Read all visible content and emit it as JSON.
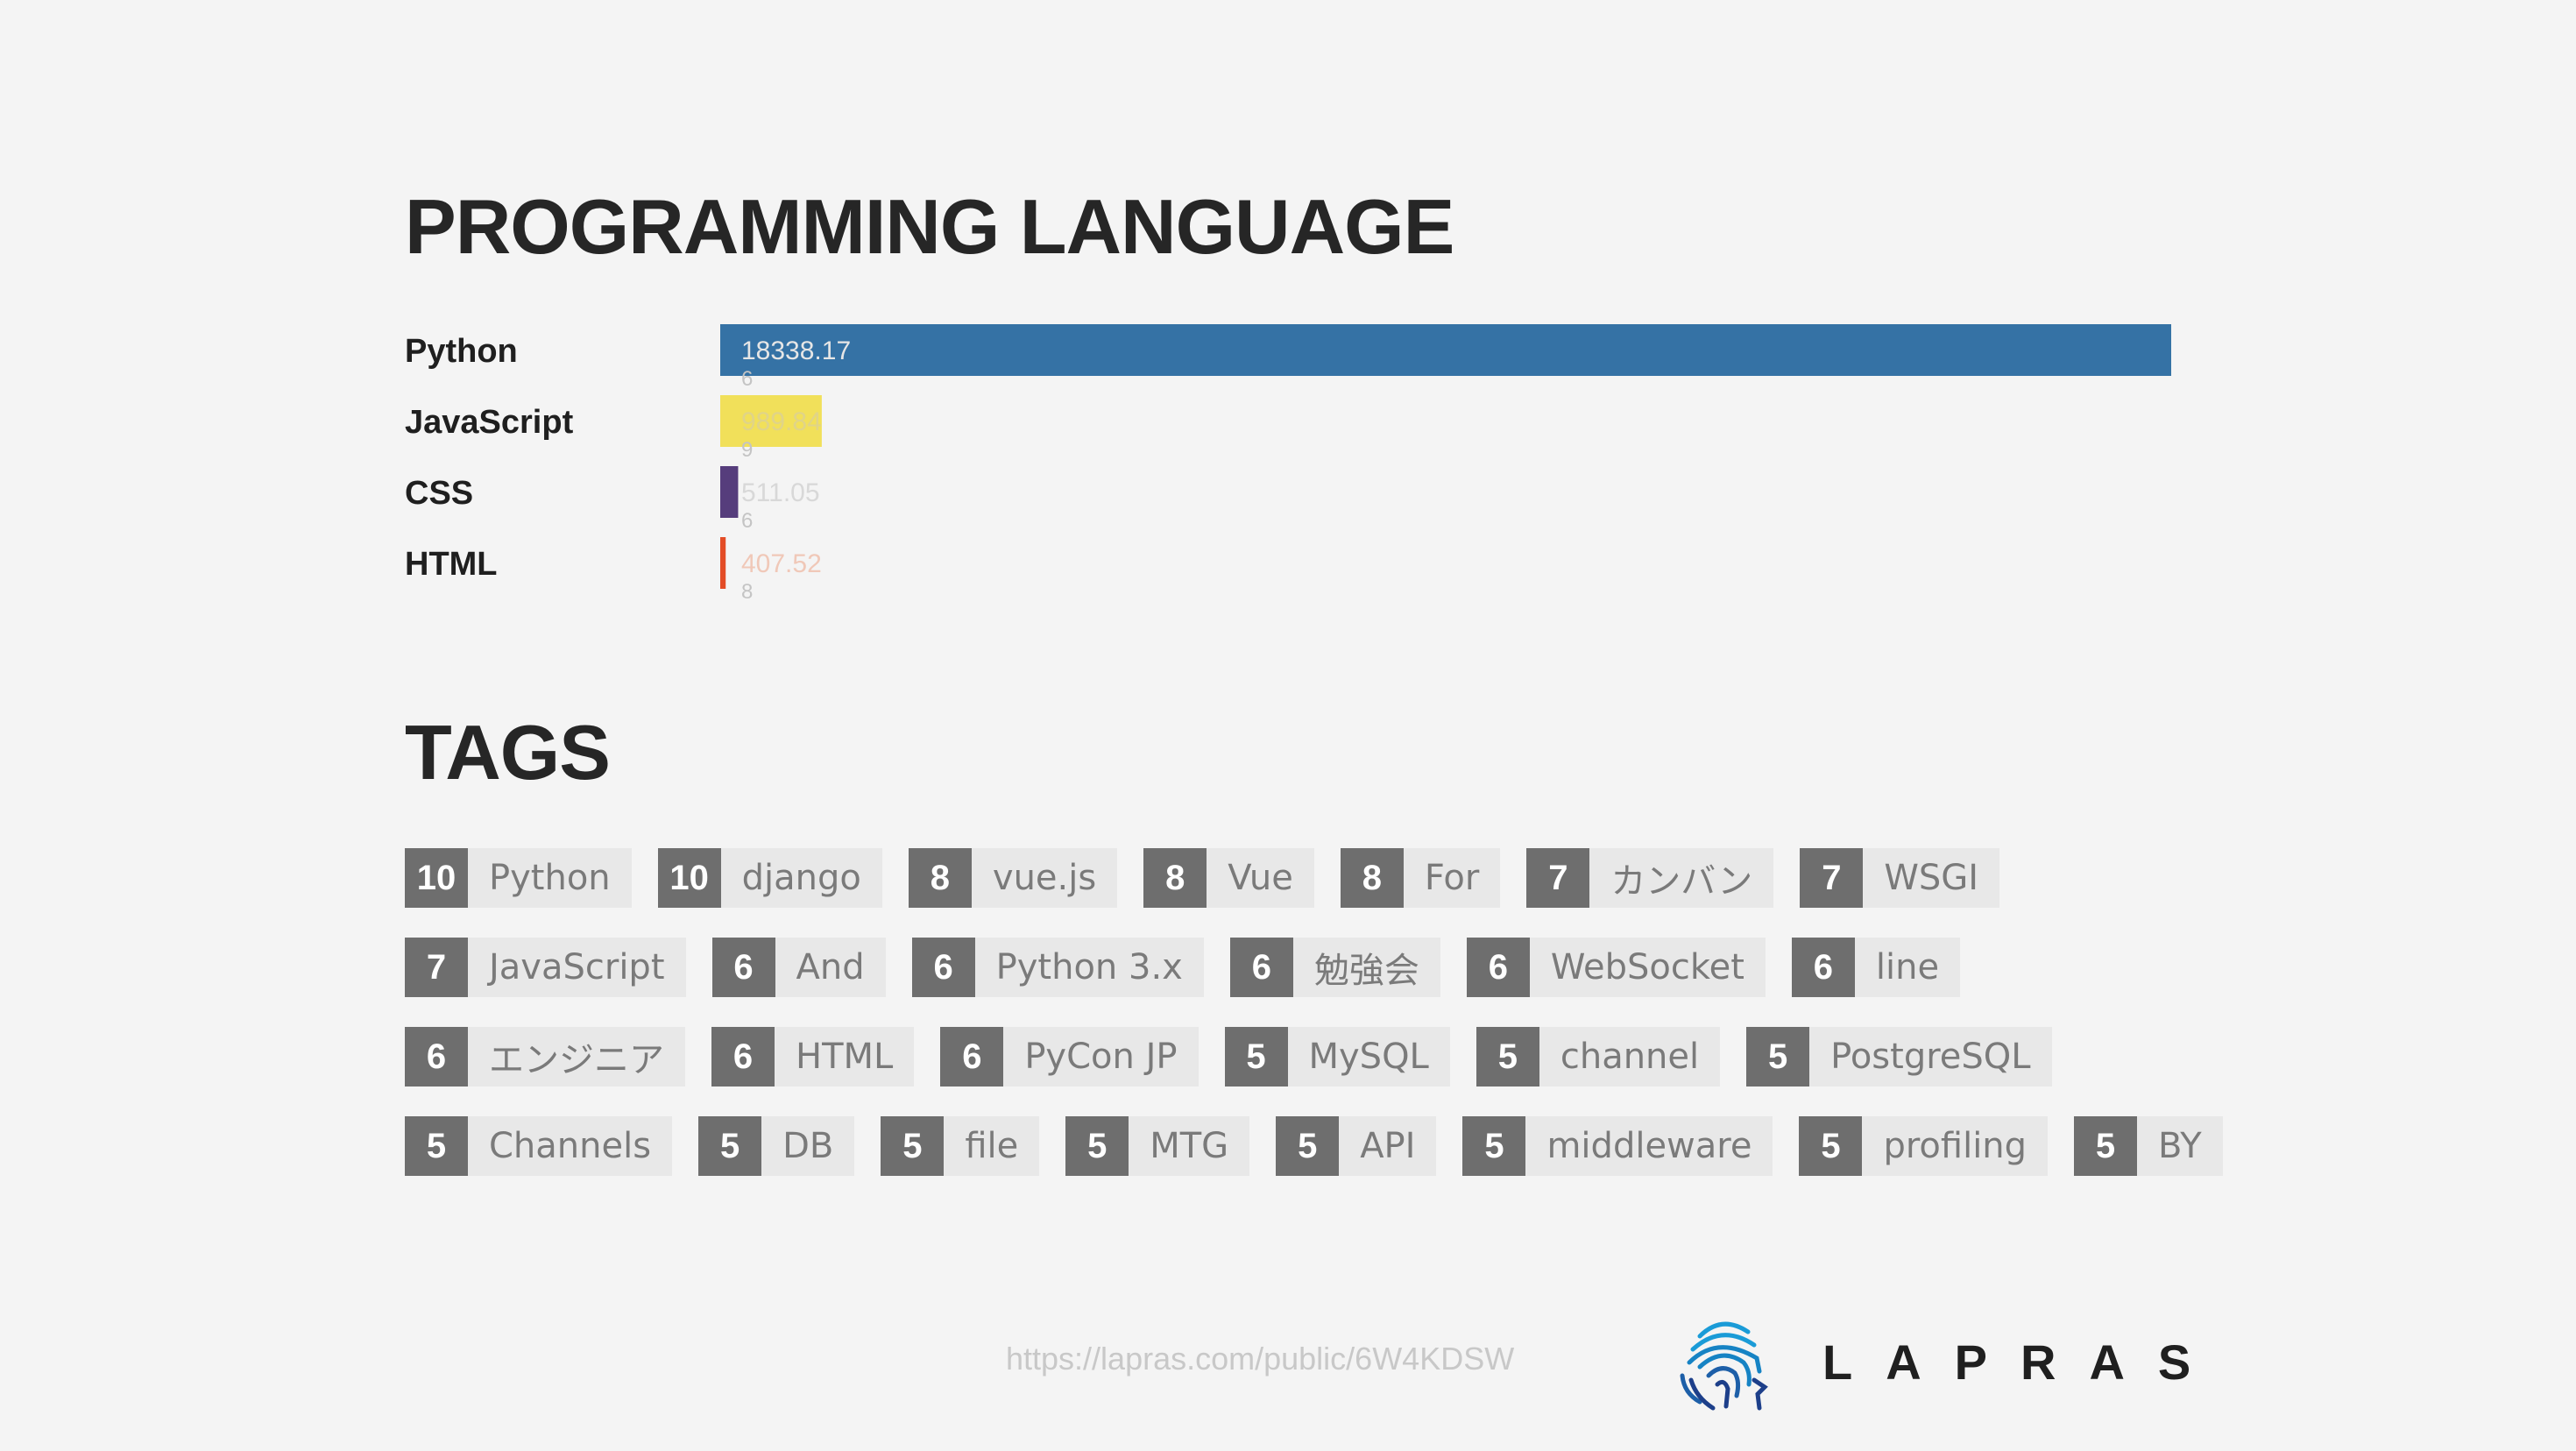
{
  "sections": {
    "language_title": "PROGRAMMING LANGUAGE",
    "tags_title": "TAGS"
  },
  "chart_data": {
    "type": "bar",
    "orientation": "horizontal",
    "title": "PROGRAMMING LANGUAGE",
    "categories": [
      "Python",
      "JavaScript",
      "CSS",
      "HTML"
    ],
    "values": [
      18338.17,
      989.84,
      511.05,
      407.52
    ],
    "value_labels": [
      "18338.17",
      "989.84",
      "511.05",
      "407.52"
    ],
    "value_sublabels": [
      "6",
      "9",
      "6",
      "8"
    ],
    "colors": [
      "#3572A5",
      "#F1E05A",
      "#563D7C",
      "#E34C26"
    ],
    "label_colors": [
      "#e6e6e6",
      "#e0d488",
      "#d8d8d8",
      "#f0c8b8"
    ],
    "xlabel": "",
    "ylabel": ""
  },
  "tags": [
    [
      {
        "count": "10",
        "name": "Python"
      },
      {
        "count": "10",
        "name": "django"
      },
      {
        "count": "8",
        "name": "vue.js"
      },
      {
        "count": "8",
        "name": "Vue"
      },
      {
        "count": "8",
        "name": "For"
      },
      {
        "count": "7",
        "name": "カンバン"
      },
      {
        "count": "7",
        "name": "WSGI"
      }
    ],
    [
      {
        "count": "7",
        "name": "JavaScript"
      },
      {
        "count": "6",
        "name": "And"
      },
      {
        "count": "6",
        "name": "Python 3.x"
      },
      {
        "count": "6",
        "name": "勉強会"
      },
      {
        "count": "6",
        "name": "WebSocket"
      },
      {
        "count": "6",
        "name": "line"
      }
    ],
    [
      {
        "count": "6",
        "name": "エンジニア"
      },
      {
        "count": "6",
        "name": "HTML"
      },
      {
        "count": "6",
        "name": "PyCon JP"
      },
      {
        "count": "5",
        "name": "MySQL"
      },
      {
        "count": "5",
        "name": "channel"
      },
      {
        "count": "5",
        "name": "PostgreSQL"
      }
    ],
    [
      {
        "count": "5",
        "name": "Channels"
      },
      {
        "count": "5",
        "name": "DB"
      },
      {
        "count": "5",
        "name": "file"
      },
      {
        "count": "5",
        "name": "MTG"
      },
      {
        "count": "5",
        "name": "API"
      },
      {
        "count": "5",
        "name": "middleware"
      },
      {
        "count": "5",
        "name": "profiling"
      },
      {
        "count": "5",
        "name": "BY"
      }
    ]
  ],
  "footer": {
    "url": "https://lapras.com/public/6W4KDSW",
    "logo_text": "LAPRAS",
    "logo_icon": "fingerprint-head-icon",
    "logo_colors": [
      "#1a9bd7",
      "#1d3f8a"
    ]
  }
}
